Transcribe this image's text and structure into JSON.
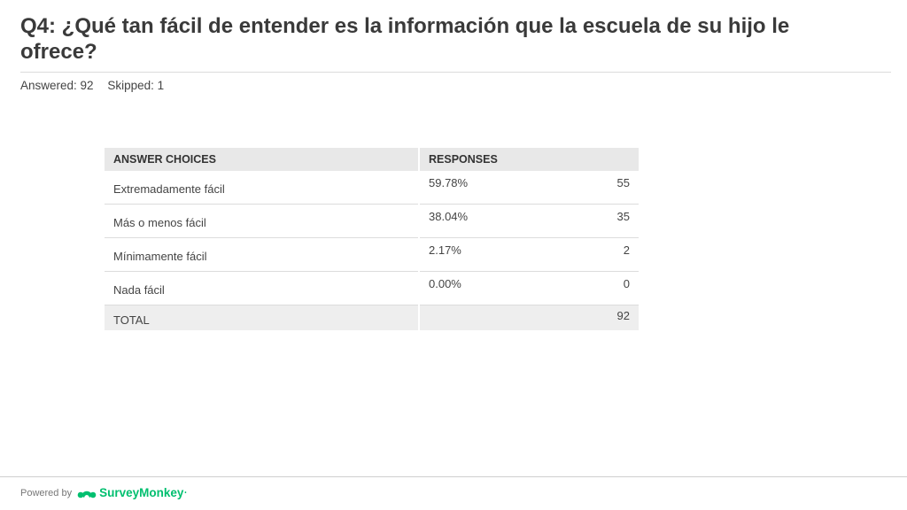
{
  "question": {
    "title": "Q4: ¿Qué tan fácil de entender es la información que la escuela de su hijo le ofrece?",
    "answered": "Answered: 92",
    "skipped": "Skipped: 1"
  },
  "table": {
    "headers": {
      "choices": "ANSWER CHOICES",
      "responses": "RESPONSES"
    },
    "rows": [
      {
        "choice": "Extremadamente fácil",
        "percent": "59.78%",
        "count": "55"
      },
      {
        "choice": "Más o menos fácil",
        "percent": "38.04%",
        "count": "35"
      },
      {
        "choice": "Mínimamente fácil",
        "percent": "2.17%",
        "count": "2"
      },
      {
        "choice": "Nada fácil",
        "percent": "0.00%",
        "count": "0"
      }
    ],
    "total": {
      "label": "TOTAL",
      "count": "92"
    }
  },
  "footer": {
    "powered_by": "Powered by",
    "brand": "SurveyMonkey",
    "brand_color": "#00bf6f",
    "brand_icon": "surveymonkey-logo-icon"
  }
}
